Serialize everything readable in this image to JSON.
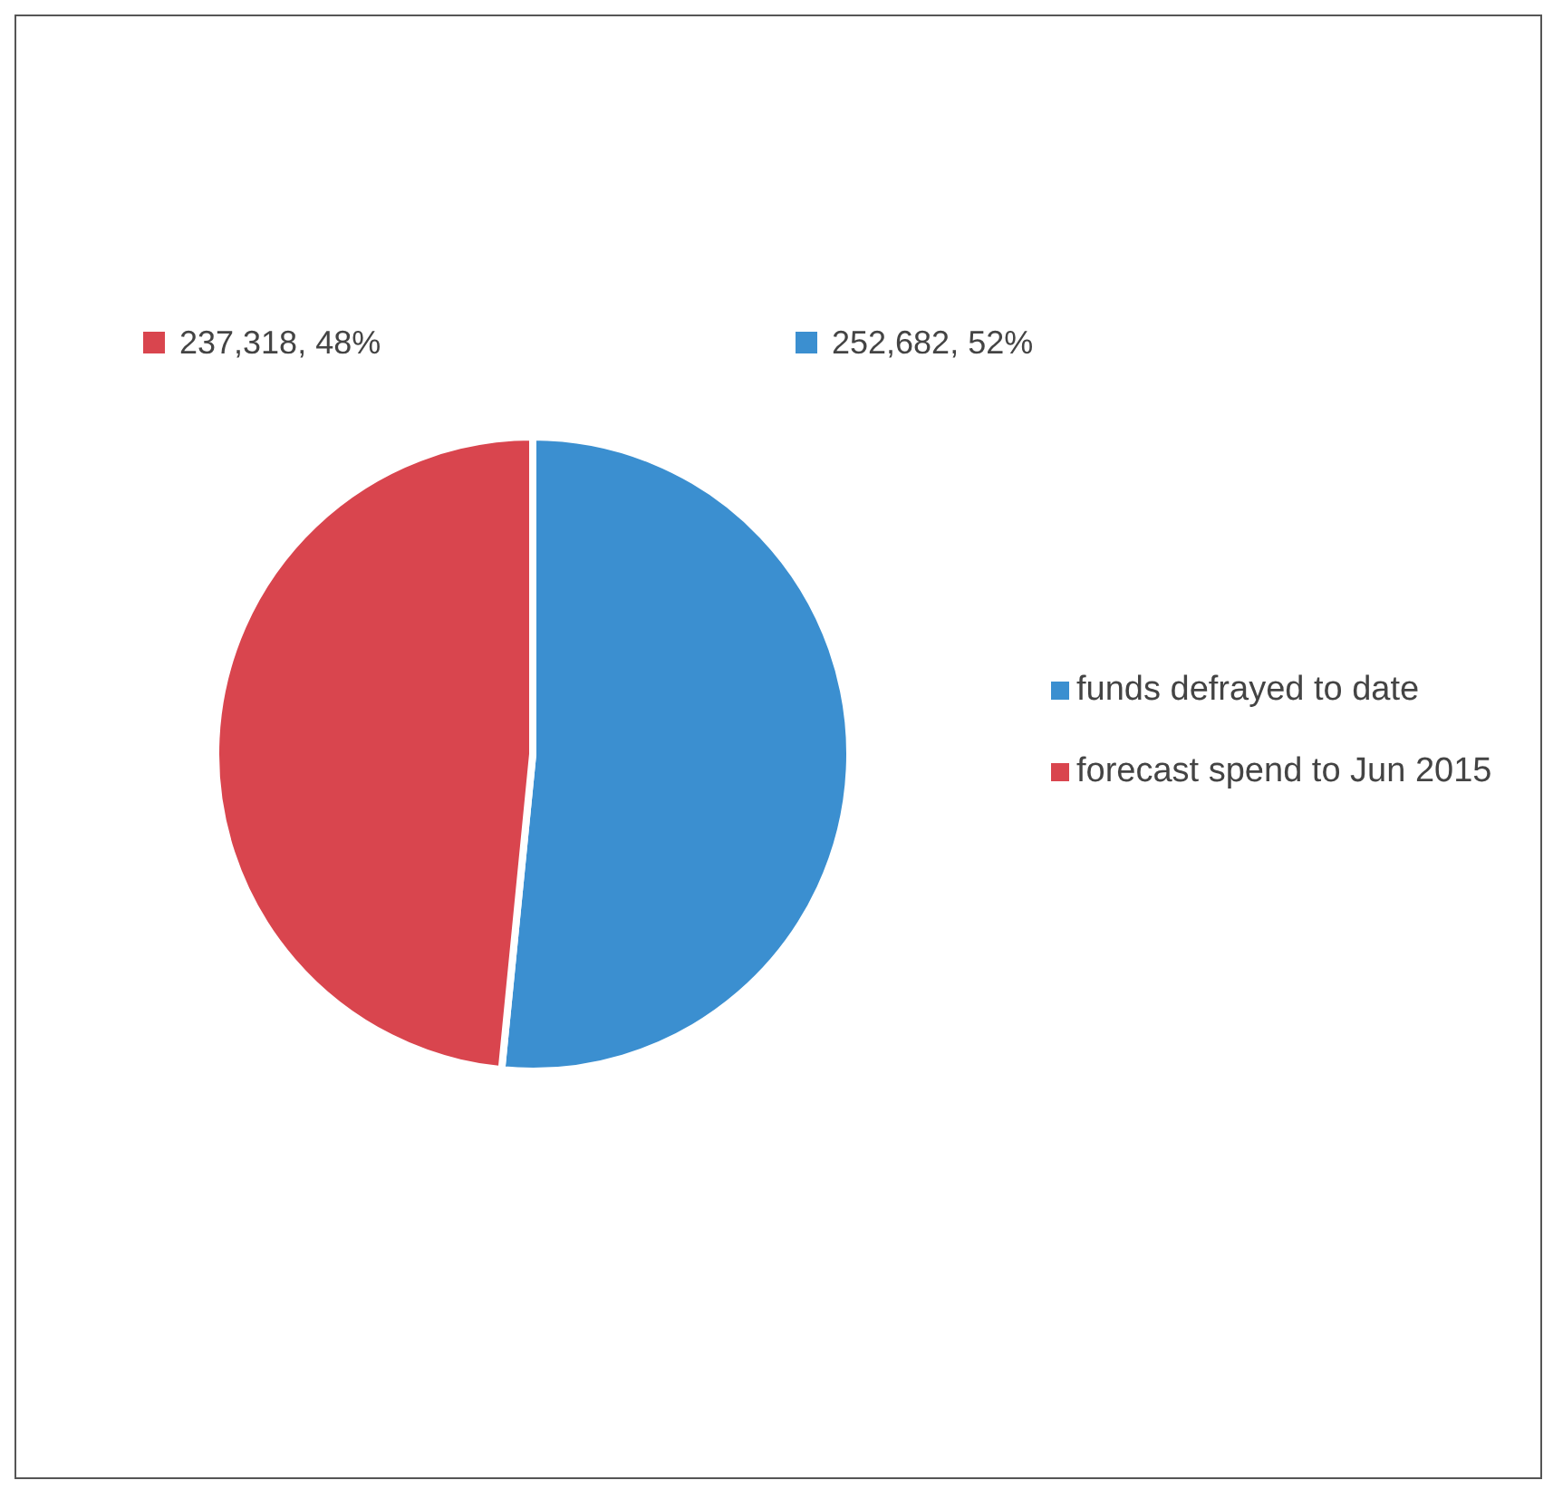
{
  "chart_data": {
    "type": "pie",
    "categories": [
      "funds defrayed to date",
      "forecast spend to Jun 2015"
    ],
    "values": [
      252682,
      237318
    ],
    "colors": [
      "#3b8fd0",
      "#d9454e"
    ],
    "value_labels": [
      "252,682, 52%",
      "237,318, 48%"
    ],
    "legend": "right"
  }
}
